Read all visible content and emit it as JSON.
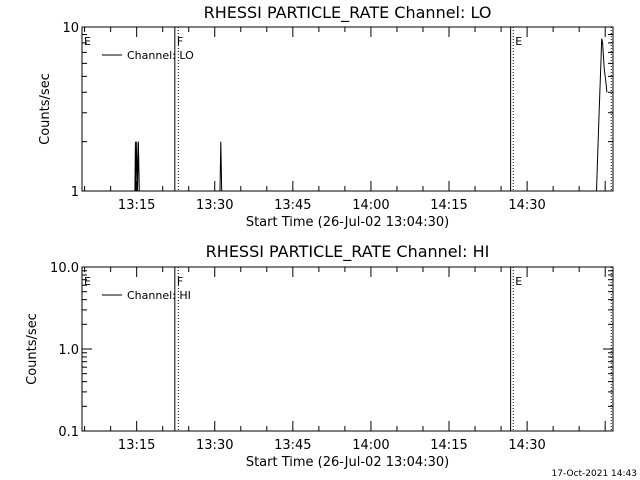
{
  "footer_timestamp": "17-Oct-2021 14:43",
  "chart_data": [
    {
      "type": "line",
      "title": "RHESSI PARTICLE_RATE Channel: LO",
      "xlabel": "Start Time (26-Jul-02 13:04:30)",
      "ylabel": "Counts/sec",
      "y_scale": "log",
      "ylim": [
        1,
        10
      ],
      "yticks": [
        "10",
        "1"
      ],
      "xlim": [
        "13:04:30",
        "14:46:30"
      ],
      "xticks": [
        "13:15",
        "13:30",
        "13:45",
        "14:00",
        "14:15",
        "14:30"
      ],
      "legend": "top-left",
      "series": [
        {
          "name": "Channel: LO",
          "x": [
            "13:14:40",
            "13:14:45",
            "13:14:50",
            "13:15:00",
            "13:15:10",
            "13:15:20",
            "13:15:30",
            "13:15:40",
            "13:31:00",
            "13:31:10",
            "13:31:20",
            "13:31:30",
            "14:43:20",
            "14:43:50",
            "14:44:10",
            "14:44:20",
            "14:44:30",
            "14:44:40",
            "14:44:50",
            "14:45:00",
            "14:45:10",
            "14:45:20"
          ],
          "y": [
            1,
            2,
            1,
            2,
            1,
            2,
            1,
            1,
            1,
            2,
            1,
            1,
            1,
            3,
            6,
            8.5,
            8,
            6.5,
            5.5,
            5,
            4.5,
            4
          ]
        }
      ],
      "markers": [
        {
          "label": "E",
          "time": "13:04:30",
          "style": "dotted"
        },
        {
          "label": "F",
          "time": "13:22:20",
          "style": "solid"
        },
        {
          "label": "",
          "time": "13:23:00",
          "style": "dotted"
        },
        {
          "label": "",
          "time": "14:26:50",
          "style": "solid"
        },
        {
          "label": "E",
          "time": "14:27:20",
          "style": "dotted"
        },
        {
          "label": "",
          "time": "14:46:10",
          "style": "dotted"
        }
      ]
    },
    {
      "type": "line",
      "title": "RHESSI PARTICLE_RATE Channel: HI",
      "xlabel": "Start Time (26-Jul-02 13:04:30)",
      "ylabel": "Counts/sec",
      "y_scale": "log",
      "ylim": [
        0.1,
        10
      ],
      "yticks": [
        "10.0",
        "1.0",
        "0.1"
      ],
      "xlim": [
        "13:04:30",
        "14:46:30"
      ],
      "xticks": [
        "13:15",
        "13:30",
        "13:45",
        "14:00",
        "14:15",
        "14:30"
      ],
      "legend": "top-left",
      "series": [
        {
          "name": "Channel: HI",
          "x": [],
          "y": []
        }
      ],
      "markers": [
        {
          "label": "E",
          "time": "13:04:30",
          "style": "dotted"
        },
        {
          "label": "F",
          "time": "13:22:20",
          "style": "solid"
        },
        {
          "label": "",
          "time": "13:23:00",
          "style": "dotted"
        },
        {
          "label": "",
          "time": "14:26:50",
          "style": "solid"
        },
        {
          "label": "E",
          "time": "14:27:20",
          "style": "dotted"
        },
        {
          "label": "",
          "time": "14:46:10",
          "style": "dotted"
        }
      ]
    }
  ]
}
